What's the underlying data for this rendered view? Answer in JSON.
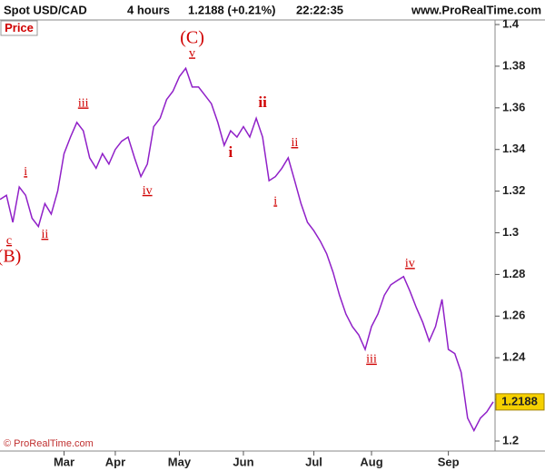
{
  "header": {
    "symbol": "Spot USD/CAD",
    "period": "4 hours",
    "quote": "1.2188 (+0.21%)",
    "time": "22:22:35",
    "site": "www.ProRealTime.com"
  },
  "footer": "© ProRealTime.com",
  "chart_data": {
    "type": "line",
    "title": "Price",
    "color": "#9020c8",
    "values": [
      1.316,
      1.318,
      1.305,
      1.322,
      1.318,
      1.307,
      1.303,
      1.314,
      1.309,
      1.32,
      1.338,
      1.346,
      1.353,
      1.349,
      1.336,
      1.331,
      1.338,
      1.333,
      1.34,
      1.344,
      1.346,
      1.336,
      1.327,
      1.333,
      1.351,
      1.355,
      1.364,
      1.368,
      1.375,
      1.379,
      1.37,
      1.37,
      1.366,
      1.362,
      1.353,
      1.342,
      1.349,
      1.346,
      1.351,
      1.346,
      1.355,
      1.346,
      1.325,
      1.327,
      1.331,
      1.336,
      1.325,
      1.314,
      1.305,
      1.301,
      1.296,
      1.29,
      1.281,
      1.27,
      1.261,
      1.255,
      1.251,
      1.244,
      1.255,
      1.261,
      1.27,
      1.275,
      1.277,
      1.279,
      1.272,
      1.264,
      1.257,
      1.248,
      1.255,
      1.268,
      1.244,
      1.242,
      1.233,
      1.211,
      1.205,
      1.211,
      1.214,
      1.2188
    ],
    "xticks": [
      {
        "value": 10,
        "label": "Mar"
      },
      {
        "value": 18,
        "label": "Apr"
      },
      {
        "value": 28,
        "label": "May"
      },
      {
        "value": 38,
        "label": "Jun"
      },
      {
        "value": 49,
        "label": "Jul"
      },
      {
        "value": 58,
        "label": "Aug"
      },
      {
        "value": 70,
        "label": "Sep"
      }
    ],
    "ylim": [
      1.1952,
      1.4022
    ],
    "yticks": [
      1.2,
      1.22,
      1.24,
      1.26,
      1.28,
      1.3,
      1.32,
      1.34,
      1.36,
      1.38,
      1.4
    ],
    "annotations": [
      {
        "text": "c",
        "x": 1,
        "y": 1.296,
        "style": "underline"
      },
      {
        "text": "(B)",
        "x": 1,
        "y": 1.288,
        "style": "large"
      },
      {
        "text": "i",
        "x": 4,
        "y": 1.329,
        "style": "underline"
      },
      {
        "text": "ii",
        "x": 7,
        "y": 1.299,
        "style": "underline"
      },
      {
        "text": "iii",
        "x": 13,
        "y": 1.362,
        "style": "underline"
      },
      {
        "text": "iv",
        "x": 23,
        "y": 1.32,
        "style": "underline"
      },
      {
        "text": "v",
        "x": 30,
        "y": 1.386,
        "style": "underline"
      },
      {
        "text": "(C)",
        "x": 30,
        "y": 1.393,
        "style": "large"
      },
      {
        "text": "i",
        "x": 36,
        "y": 1.338,
        "style": "bold"
      },
      {
        "text": "ii",
        "x": 41,
        "y": 1.362,
        "style": "bold"
      },
      {
        "text": "i",
        "x": 43,
        "y": 1.315,
        "style": "underline"
      },
      {
        "text": "ii",
        "x": 46,
        "y": 1.343,
        "style": "underline"
      },
      {
        "text": "iii",
        "x": 58,
        "y": 1.239,
        "style": "underline"
      },
      {
        "text": "iv",
        "x": 64,
        "y": 1.285,
        "style": "underline"
      }
    ]
  }
}
